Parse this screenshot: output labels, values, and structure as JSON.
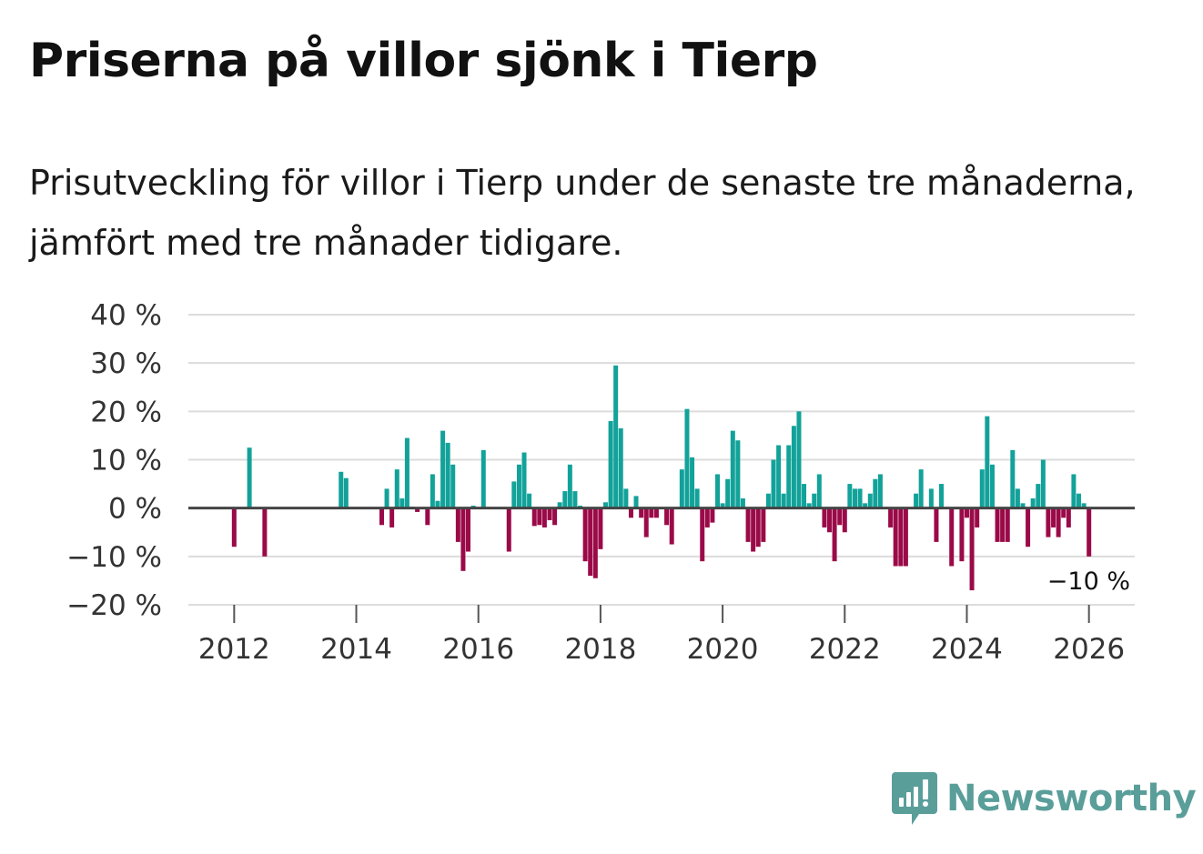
{
  "header": {
    "title": "Priserna på villor sjönk i Tierp",
    "subtitle": "Prisutveckling för villor i Tierp under de senaste tre månaderna, jämfört med tre månader tidigare."
  },
  "branding": {
    "name": "Newsworthy",
    "color": "#5a9e9a",
    "icon": "newsworthy-logo-icon"
  },
  "colors": {
    "positive": "#12a29a",
    "negative": "#9b0a48",
    "grid": "#dcdcdc",
    "zero_line": "#444444"
  },
  "chart_data": {
    "type": "bar",
    "title": "Priserna på villor sjönk i Tierp",
    "ylabel": "",
    "xlabel": "",
    "ylim": [
      -20,
      40
    ],
    "yticks": [
      -20,
      -10,
      0,
      10,
      20,
      30,
      40
    ],
    "ytick_labels": [
      "−20 %",
      "−10 %",
      "0 %",
      "10 %",
      "20 %",
      "30 %",
      "40 %"
    ],
    "xlim": [
      2011.25,
      2026.75
    ],
    "xticks": [
      2012,
      2014,
      2016,
      2018,
      2020,
      2022,
      2024,
      2026
    ],
    "xtick_labels": [
      "2012",
      "2014",
      "2016",
      "2018",
      "2020",
      "2022",
      "2024",
      "2026"
    ],
    "last_value_label": "−10 %",
    "series": [
      {
        "name": "Prisutveckling (%)",
        "x": [
          2012.0,
          2012.25,
          2012.5,
          2013.75,
          2013.833,
          2014.417,
          2014.5,
          2014.583,
          2014.667,
          2014.75,
          2014.833,
          2014.917,
          2015.0,
          2015.167,
          2015.25,
          2015.333,
          2015.417,
          2015.5,
          2015.583,
          2015.667,
          2015.75,
          2015.833,
          2015.917,
          2016.083,
          2016.5,
          2016.583,
          2016.667,
          2016.75,
          2016.833,
          2016.917,
          2017.0,
          2017.083,
          2017.167,
          2017.25,
          2017.333,
          2017.417,
          2017.5,
          2017.583,
          2017.667,
          2017.75,
          2017.833,
          2017.917,
          2018.0,
          2018.083,
          2018.167,
          2018.25,
          2018.333,
          2018.417,
          2018.5,
          2018.583,
          2018.667,
          2018.75,
          2018.833,
          2018.917,
          2019.0,
          2019.083,
          2019.167,
          2019.333,
          2019.417,
          2019.5,
          2019.583,
          2019.667,
          2019.75,
          2019.833,
          2019.917,
          2020.0,
          2020.083,
          2020.167,
          2020.25,
          2020.333,
          2020.417,
          2020.5,
          2020.583,
          2020.667,
          2020.75,
          2020.833,
          2020.917,
          2021.0,
          2021.083,
          2021.167,
          2021.25,
          2021.333,
          2021.417,
          2021.5,
          2021.583,
          2021.667,
          2021.75,
          2021.833,
          2021.917,
          2022.0,
          2022.083,
          2022.167,
          2022.25,
          2022.333,
          2022.417,
          2022.5,
          2022.583,
          2022.75,
          2022.833,
          2022.917,
          2023.0,
          2023.167,
          2023.25,
          2023.417,
          2023.5,
          2023.583,
          2023.75,
          2023.917,
          2024.0,
          2024.083,
          2024.167,
          2024.25,
          2024.333,
          2024.417,
          2024.5,
          2024.583,
          2024.667,
          2024.75,
          2024.833,
          2024.917,
          2025.0,
          2025.083,
          2025.167,
          2025.25,
          2025.333,
          2025.417,
          2025.5,
          2025.583,
          2025.667,
          2025.75,
          2025.833,
          2025.917,
          2026.0
        ],
        "values": [
          -8,
          12.5,
          -10,
          7.5,
          6.2,
          -3.5,
          4,
          -4,
          8,
          2,
          14.5,
          0.3,
          -0.8,
          -3.5,
          7,
          1.5,
          16,
          13.5,
          9,
          -7,
          -13,
          -9,
          0.5,
          12,
          -9,
          5.5,
          9,
          11.5,
          3,
          -3.7,
          -3.5,
          -4,
          -2.5,
          -3.5,
          1.2,
          3.5,
          9,
          3.5,
          0.5,
          -11,
          -14,
          -14.5,
          -8.5,
          1.2,
          18,
          29.5,
          16.5,
          4,
          -2,
          2.5,
          -2,
          -6,
          -2,
          -2,
          0.2,
          -3.5,
          -7.5,
          8,
          20.5,
          10.5,
          4,
          -11,
          -4,
          -3,
          7,
          1,
          6,
          16,
          14,
          2,
          -7,
          -9,
          -8,
          -7,
          3,
          10,
          13,
          3,
          13,
          17,
          20,
          5,
          1,
          3,
          7,
          -4,
          -5,
          -11,
          -3.5,
          -5,
          5,
          4,
          4,
          1,
          3,
          6,
          7,
          -4,
          -12,
          -12,
          -12,
          3,
          8,
          4,
          -7,
          5,
          -12,
          -11,
          -2,
          -17,
          -4,
          8,
          19,
          9,
          -7,
          -7,
          -7,
          12,
          4,
          1,
          -8,
          2,
          5,
          10,
          -6,
          -4,
          -6,
          -2,
          -4,
          7,
          3,
          1,
          -10
        ]
      }
    ]
  }
}
